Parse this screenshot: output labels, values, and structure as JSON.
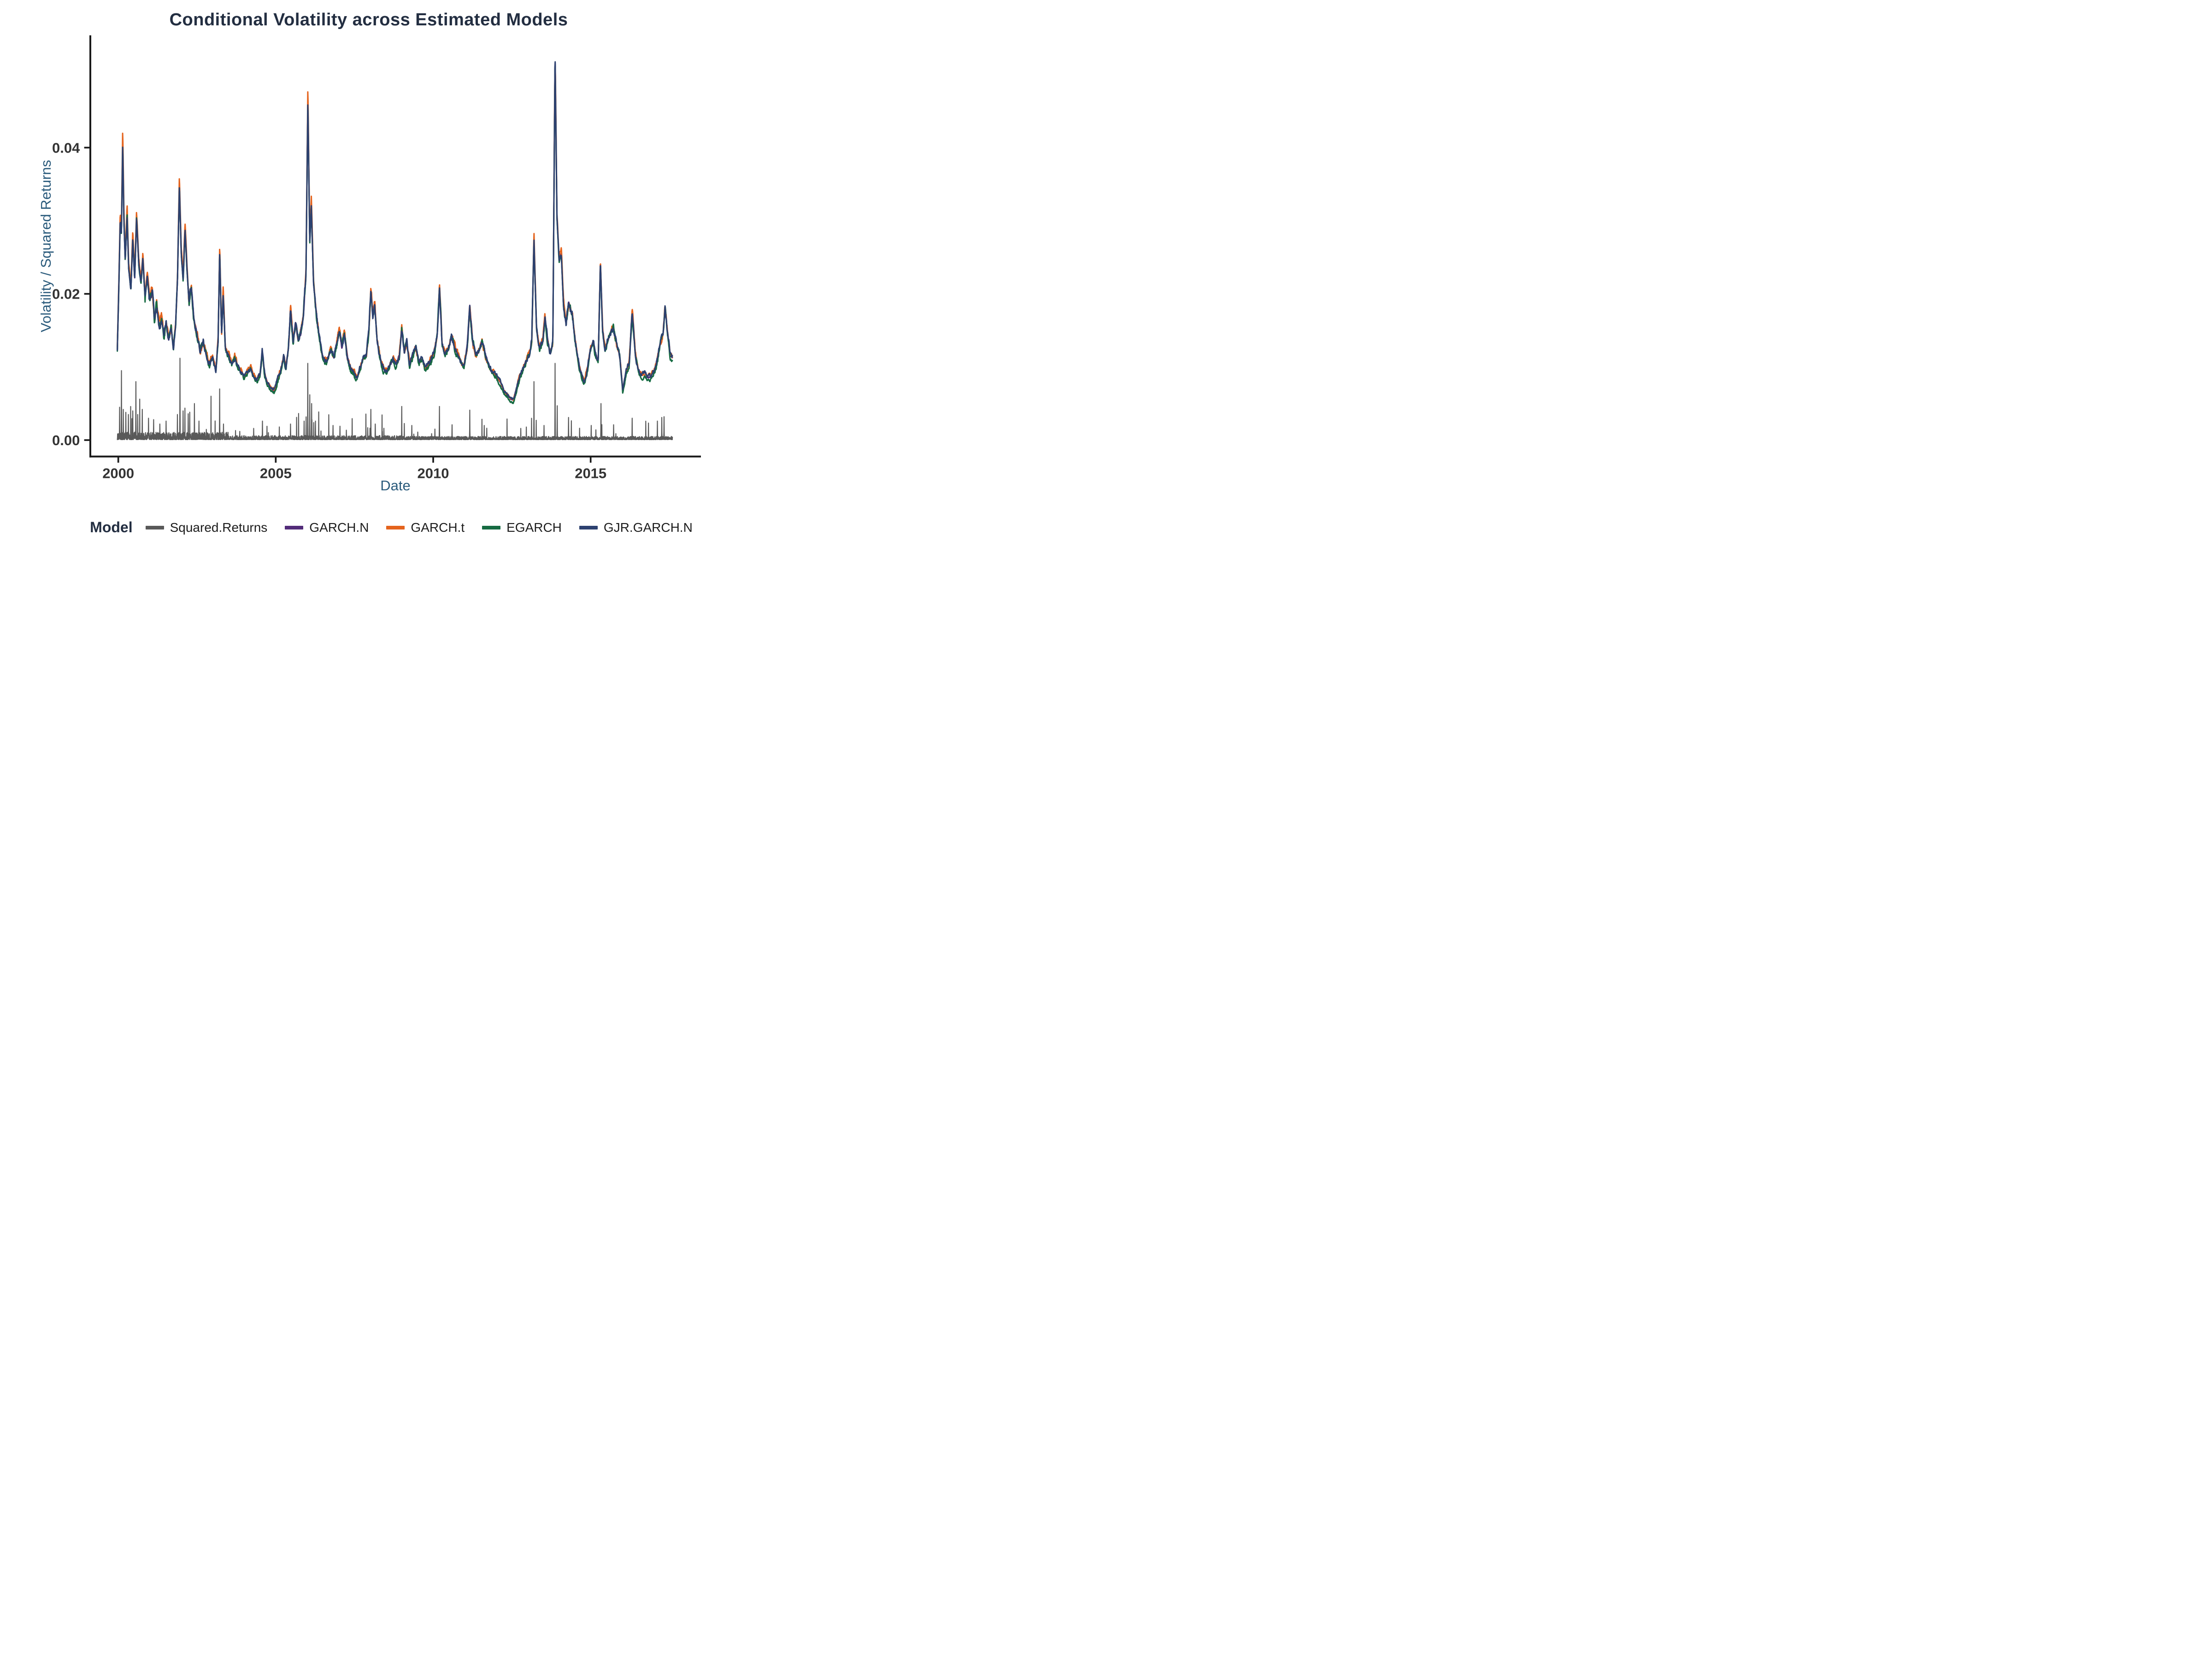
{
  "title": "Conditional Volatility across Estimated Models",
  "axes": {
    "x_label": "Date",
    "y_label": "Volatility / Squared Returns",
    "x_ticks": [
      "2000",
      "2005",
      "2010",
      "2015"
    ],
    "y_ticks": [
      "0.00",
      "0.02",
      "0.04"
    ]
  },
  "legend": {
    "title": "Model",
    "items": [
      {
        "label": "Squared.Returns",
        "color": "#595959"
      },
      {
        "label": "GARCH.N",
        "color": "#522B79"
      },
      {
        "label": "GARCH.t",
        "color": "#E4631D"
      },
      {
        "label": "EGARCH",
        "color": "#166B42"
      },
      {
        "label": "GJR.GARCH.N",
        "color": "#2D4170"
      }
    ]
  },
  "colors": {
    "title_text": "#232E41",
    "axis_title_text": "#2B5B7C",
    "tick_text": "#333333",
    "axis_line": "#1A1A1A",
    "background": "#FFFFFF"
  },
  "chart_data": {
    "type": "line",
    "title": "Conditional Volatility across Estimated Models",
    "xlabel": "Date",
    "ylabel": "Volatility / Squared Returns",
    "xlim": [
      1999.112,
      2018.502
    ],
    "ylim": [
      -0.002248,
      0.055357
    ],
    "x_ticks": [
      2000,
      2005,
      2010,
      2015
    ],
    "y_ticks": [
      0,
      0.02,
      0.04
    ],
    "grid": false,
    "legend_position": "bottom",
    "series": [
      {
        "name": "Squared.Returns",
        "color": "#595959",
        "role": "spikes"
      },
      {
        "name": "GARCH.N",
        "color": "#522B79",
        "role": "garch_n"
      },
      {
        "name": "GARCH.t",
        "color": "#E4631D",
        "role": "garch_t"
      },
      {
        "name": "EGARCH",
        "color": "#166B42",
        "role": "egarch"
      },
      {
        "name": "GJR.GARCH.N",
        "color": "#2D4170",
        "role": "gjr"
      }
    ],
    "volatility_anchors": [
      [
        1999.97,
        0.0125
      ],
      [
        2000.02,
        0.0215
      ],
      [
        2000.06,
        0.03
      ],
      [
        2000.1,
        0.0285
      ],
      [
        2000.14,
        0.041
      ],
      [
        2000.18,
        0.03
      ],
      [
        2000.22,
        0.0245
      ],
      [
        2000.28,
        0.031
      ],
      [
        2000.33,
        0.0235
      ],
      [
        2000.4,
        0.0205
      ],
      [
        2000.46,
        0.0275
      ],
      [
        2000.52,
        0.022
      ],
      [
        2000.58,
        0.0305
      ],
      [
        2000.65,
        0.024
      ],
      [
        2000.72,
        0.0215
      ],
      [
        2000.78,
        0.025
      ],
      [
        2000.85,
        0.0195
      ],
      [
        2000.92,
        0.0225
      ],
      [
        2001.0,
        0.019
      ],
      [
        2001.08,
        0.0205
      ],
      [
        2001.15,
        0.016
      ],
      [
        2001.22,
        0.0185
      ],
      [
        2001.3,
        0.0155
      ],
      [
        2001.38,
        0.0165
      ],
      [
        2001.45,
        0.014
      ],
      [
        2001.52,
        0.016
      ],
      [
        2001.6,
        0.0135
      ],
      [
        2001.68,
        0.0155
      ],
      [
        2001.75,
        0.0125
      ],
      [
        2001.82,
        0.016
      ],
      [
        2001.88,
        0.022
      ],
      [
        2001.94,
        0.035
      ],
      [
        2002.0,
        0.0255
      ],
      [
        2002.06,
        0.022
      ],
      [
        2002.12,
        0.029
      ],
      [
        2002.18,
        0.0235
      ],
      [
        2002.25,
        0.0185
      ],
      [
        2002.32,
        0.021
      ],
      [
        2002.4,
        0.0165
      ],
      [
        2002.5,
        0.0145
      ],
      [
        2002.6,
        0.0125
      ],
      [
        2002.7,
        0.0135
      ],
      [
        2002.8,
        0.0115
      ],
      [
        2002.9,
        0.0105
      ],
      [
        2003.0,
        0.0115
      ],
      [
        2003.1,
        0.0095
      ],
      [
        2003.17,
        0.0135
      ],
      [
        2003.22,
        0.026
      ],
      [
        2003.28,
        0.0145
      ],
      [
        2003.33,
        0.02
      ],
      [
        2003.4,
        0.0125
      ],
      [
        2003.5,
        0.0115
      ],
      [
        2003.6,
        0.0105
      ],
      [
        2003.7,
        0.0115
      ],
      [
        2003.8,
        0.01
      ],
      [
        2003.9,
        0.0095
      ],
      [
        2004.0,
        0.0088
      ],
      [
        2004.1,
        0.0095
      ],
      [
        2004.2,
        0.01
      ],
      [
        2004.3,
        0.0088
      ],
      [
        2004.4,
        0.0082
      ],
      [
        2004.5,
        0.009
      ],
      [
        2004.57,
        0.0122
      ],
      [
        2004.65,
        0.009
      ],
      [
        2004.75,
        0.0078
      ],
      [
        2004.85,
        0.0072
      ],
      [
        2004.95,
        0.0068
      ],
      [
        2005.05,
        0.0082
      ],
      [
        2005.15,
        0.0095
      ],
      [
        2005.25,
        0.0115
      ],
      [
        2005.32,
        0.0098
      ],
      [
        2005.4,
        0.0125
      ],
      [
        2005.47,
        0.018
      ],
      [
        2005.55,
        0.0135
      ],
      [
        2005.63,
        0.016
      ],
      [
        2005.72,
        0.0135
      ],
      [
        2005.8,
        0.0148
      ],
      [
        2005.88,
        0.0172
      ],
      [
        2005.96,
        0.0225
      ],
      [
        2006.02,
        0.0465
      ],
      [
        2006.08,
        0.027
      ],
      [
        2006.13,
        0.032
      ],
      [
        2006.2,
        0.0215
      ],
      [
        2006.28,
        0.0175
      ],
      [
        2006.36,
        0.0148
      ],
      [
        2006.45,
        0.0122
      ],
      [
        2006.55,
        0.0108
      ],
      [
        2006.65,
        0.0112
      ],
      [
        2006.75,
        0.0125
      ],
      [
        2006.85,
        0.0112
      ],
      [
        2006.95,
        0.0135
      ],
      [
        2007.02,
        0.0152
      ],
      [
        2007.1,
        0.0128
      ],
      [
        2007.18,
        0.0148
      ],
      [
        2007.28,
        0.0112
      ],
      [
        2007.38,
        0.0098
      ],
      [
        2007.48,
        0.0092
      ],
      [
        2007.58,
        0.0085
      ],
      [
        2007.68,
        0.0098
      ],
      [
        2007.78,
        0.0112
      ],
      [
        2007.88,
        0.0118
      ],
      [
        2007.96,
        0.0148
      ],
      [
        2008.02,
        0.0205
      ],
      [
        2008.08,
        0.0172
      ],
      [
        2008.14,
        0.0188
      ],
      [
        2008.22,
        0.0135
      ],
      [
        2008.32,
        0.0112
      ],
      [
        2008.42,
        0.0098
      ],
      [
        2008.52,
        0.0095
      ],
      [
        2008.62,
        0.0102
      ],
      [
        2008.72,
        0.0112
      ],
      [
        2008.82,
        0.0105
      ],
      [
        2008.92,
        0.0115
      ],
      [
        2009.0,
        0.0155
      ],
      [
        2009.08,
        0.0122
      ],
      [
        2009.16,
        0.0135
      ],
      [
        2009.25,
        0.0102
      ],
      [
        2009.35,
        0.0115
      ],
      [
        2009.45,
        0.0128
      ],
      [
        2009.55,
        0.0105
      ],
      [
        2009.65,
        0.0112
      ],
      [
        2009.75,
        0.0098
      ],
      [
        2009.85,
        0.0105
      ],
      [
        2009.95,
        0.0112
      ],
      [
        2010.05,
        0.0122
      ],
      [
        2010.13,
        0.0148
      ],
      [
        2010.2,
        0.021
      ],
      [
        2010.28,
        0.0132
      ],
      [
        2010.38,
        0.0118
      ],
      [
        2010.48,
        0.0125
      ],
      [
        2010.58,
        0.0142
      ],
      [
        2010.68,
        0.0128
      ],
      [
        2010.78,
        0.0118
      ],
      [
        2010.88,
        0.0108
      ],
      [
        2010.98,
        0.0102
      ],
      [
        2011.08,
        0.0128
      ],
      [
        2011.16,
        0.0185
      ],
      [
        2011.25,
        0.0135
      ],
      [
        2011.35,
        0.0118
      ],
      [
        2011.45,
        0.0122
      ],
      [
        2011.55,
        0.0138
      ],
      [
        2011.65,
        0.0118
      ],
      [
        2011.75,
        0.0105
      ],
      [
        2011.85,
        0.0095
      ],
      [
        2011.95,
        0.0092
      ],
      [
        2012.05,
        0.0085
      ],
      [
        2012.15,
        0.0078
      ],
      [
        2012.25,
        0.0068
      ],
      [
        2012.35,
        0.0062
      ],
      [
        2012.45,
        0.0057
      ],
      [
        2012.55,
        0.0055
      ],
      [
        2012.65,
        0.0072
      ],
      [
        2012.75,
        0.0088
      ],
      [
        2012.85,
        0.0098
      ],
      [
        2012.95,
        0.0108
      ],
      [
        2013.05,
        0.0118
      ],
      [
        2013.13,
        0.0135
      ],
      [
        2013.2,
        0.0275
      ],
      [
        2013.28,
        0.0152
      ],
      [
        2013.38,
        0.0125
      ],
      [
        2013.48,
        0.0135
      ],
      [
        2013.55,
        0.0168
      ],
      [
        2013.63,
        0.0138
      ],
      [
        2013.72,
        0.0118
      ],
      [
        2013.8,
        0.0135
      ],
      [
        2013.87,
        0.053
      ],
      [
        2013.93,
        0.0305
      ],
      [
        2014.0,
        0.0245
      ],
      [
        2014.07,
        0.0255
      ],
      [
        2014.14,
        0.0182
      ],
      [
        2014.22,
        0.0158
      ],
      [
        2014.3,
        0.0188
      ],
      [
        2014.41,
        0.0175
      ],
      [
        2014.5,
        0.0138
      ],
      [
        2014.6,
        0.0112
      ],
      [
        2014.7,
        0.0092
      ],
      [
        2014.8,
        0.008
      ],
      [
        2014.9,
        0.0098
      ],
      [
        2015.0,
        0.0128
      ],
      [
        2015.08,
        0.0135
      ],
      [
        2015.16,
        0.0118
      ],
      [
        2015.24,
        0.0108
      ],
      [
        2015.31,
        0.0242
      ],
      [
        2015.38,
        0.0148
      ],
      [
        2015.46,
        0.0125
      ],
      [
        2015.54,
        0.0135
      ],
      [
        2015.62,
        0.0148
      ],
      [
        2015.72,
        0.0155
      ],
      [
        2015.82,
        0.0132
      ],
      [
        2015.92,
        0.0118
      ],
      [
        2016.02,
        0.0068
      ],
      [
        2016.12,
        0.0092
      ],
      [
        2016.22,
        0.0105
      ],
      [
        2016.32,
        0.0176
      ],
      [
        2016.42,
        0.0118
      ],
      [
        2016.52,
        0.0095
      ],
      [
        2016.62,
        0.0088
      ],
      [
        2016.72,
        0.0092
      ],
      [
        2016.82,
        0.0085
      ],
      [
        2016.92,
        0.0088
      ],
      [
        2017.02,
        0.0095
      ],
      [
        2017.12,
        0.0112
      ],
      [
        2017.22,
        0.0135
      ],
      [
        2017.3,
        0.0145
      ],
      [
        2017.36,
        0.0182
      ],
      [
        2017.44,
        0.0148
      ],
      [
        2017.52,
        0.0118
      ],
      [
        2017.6,
        0.0112
      ]
    ],
    "squared_return_spikes": [
      [
        2000.04,
        0.0045
      ],
      [
        2000.1,
        0.0095
      ],
      [
        2000.16,
        0.0042
      ],
      [
        2000.24,
        0.0038
      ],
      [
        2000.32,
        0.0035
      ],
      [
        2000.46,
        0.004
      ],
      [
        2000.56,
        0.008
      ],
      [
        2000.62,
        0.0035
      ],
      [
        2000.76,
        0.0042
      ],
      [
        2000.96,
        0.003
      ],
      [
        2001.12,
        0.0028
      ],
      [
        2001.32,
        0.0022
      ],
      [
        2001.52,
        0.0026
      ],
      [
        2001.88,
        0.0035
      ],
      [
        2001.96,
        0.0112
      ],
      [
        2002.06,
        0.004
      ],
      [
        2002.22,
        0.0036
      ],
      [
        2002.42,
        0.005
      ],
      [
        2002.56,
        0.0026
      ],
      [
        2003.22,
        0.007
      ],
      [
        2003.34,
        0.0022
      ],
      [
        2004.58,
        0.0026
      ],
      [
        2005.47,
        0.0022
      ],
      [
        2005.9,
        0.0026
      ],
      [
        2006.02,
        0.0105
      ],
      [
        2006.08,
        0.0062
      ],
      [
        2006.14,
        0.005
      ],
      [
        2006.26,
        0.0026
      ],
      [
        2006.82,
        0.002
      ],
      [
        2007.04,
        0.0019
      ],
      [
        2007.92,
        0.0017
      ],
      [
        2008.02,
        0.0042
      ],
      [
        2008.16,
        0.0022
      ],
      [
        2009.0,
        0.0046
      ],
      [
        2009.32,
        0.002
      ],
      [
        2010.2,
        0.0046
      ],
      [
        2010.6,
        0.0021
      ],
      [
        2011.16,
        0.0041
      ],
      [
        2011.62,
        0.002
      ],
      [
        2012.78,
        0.0016
      ],
      [
        2013.2,
        0.008
      ],
      [
        2013.52,
        0.002
      ],
      [
        2013.87,
        0.0105
      ],
      [
        2013.94,
        0.0047
      ],
      [
        2014.3,
        0.0031
      ],
      [
        2015.02,
        0.002
      ],
      [
        2015.33,
        0.005
      ],
      [
        2015.73,
        0.0021
      ],
      [
        2016.32,
        0.003
      ],
      [
        2017.12,
        0.0026
      ],
      [
        2017.26,
        0.0031
      ],
      [
        2017.33,
        0.0032
      ]
    ]
  }
}
